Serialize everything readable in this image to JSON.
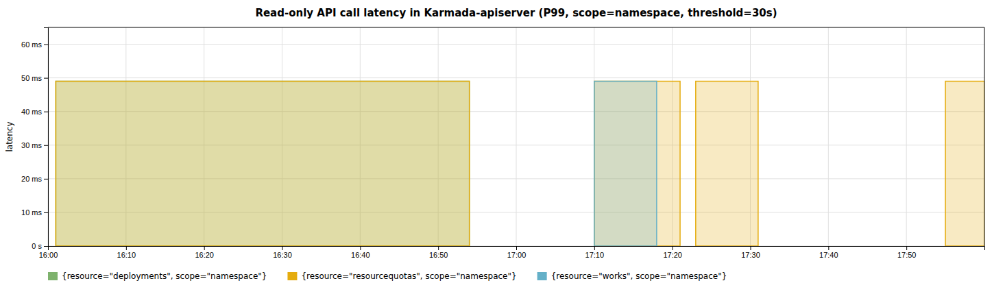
{
  "chart_data": {
    "type": "area",
    "title": "Read-only API call latency in Karmada-apiserver (P99, scope=namespace, threshold=30s)",
    "ylabel": "latency",
    "xlim": [
      0,
      120
    ],
    "ylim": [
      0,
      65
    ],
    "xticks": [
      {
        "value": 0,
        "label": "16:00"
      },
      {
        "value": 10,
        "label": "16:10"
      },
      {
        "value": 20,
        "label": "16:20"
      },
      {
        "value": 30,
        "label": "16:30"
      },
      {
        "value": 40,
        "label": "16:40"
      },
      {
        "value": 50,
        "label": "16:50"
      },
      {
        "value": 60,
        "label": "17:00"
      },
      {
        "value": 70,
        "label": "17:10"
      },
      {
        "value": 80,
        "label": "17:20"
      },
      {
        "value": 90,
        "label": "17:30"
      },
      {
        "value": 100,
        "label": "17:40"
      },
      {
        "value": 110,
        "label": "17:50"
      }
    ],
    "yticks": [
      {
        "value": 0,
        "label": "0 s"
      },
      {
        "value": 10,
        "label": "10 ms"
      },
      {
        "value": 20,
        "label": "20 ms"
      },
      {
        "value": 30,
        "label": "30 ms"
      },
      {
        "value": 40,
        "label": "40 ms"
      },
      {
        "value": 50,
        "label": "50 ms"
      },
      {
        "value": 60,
        "label": "60 ms"
      }
    ],
    "grid": true,
    "legend": "bottom",
    "series": [
      {
        "name": "{resource=\"deployments\", scope=\"namespace\"}",
        "color": "#7eb26d",
        "x_start": [
          1
        ],
        "x_end": [
          54
        ],
        "values": [
          49
        ]
      },
      {
        "name": "{resource=\"resourcequotas\", scope=\"namespace\"}",
        "color": "#e5ac0e",
        "x_start": [
          1,
          70,
          83,
          115
        ],
        "x_end": [
          54,
          81,
          91,
          120
        ],
        "values": [
          49,
          49,
          49,
          49
        ]
      },
      {
        "name": "{resource=\"works\", scope=\"namespace\"}",
        "color": "#64b0c8",
        "x_start": [
          70
        ],
        "x_end": [
          78
        ],
        "values": [
          49
        ]
      }
    ]
  }
}
